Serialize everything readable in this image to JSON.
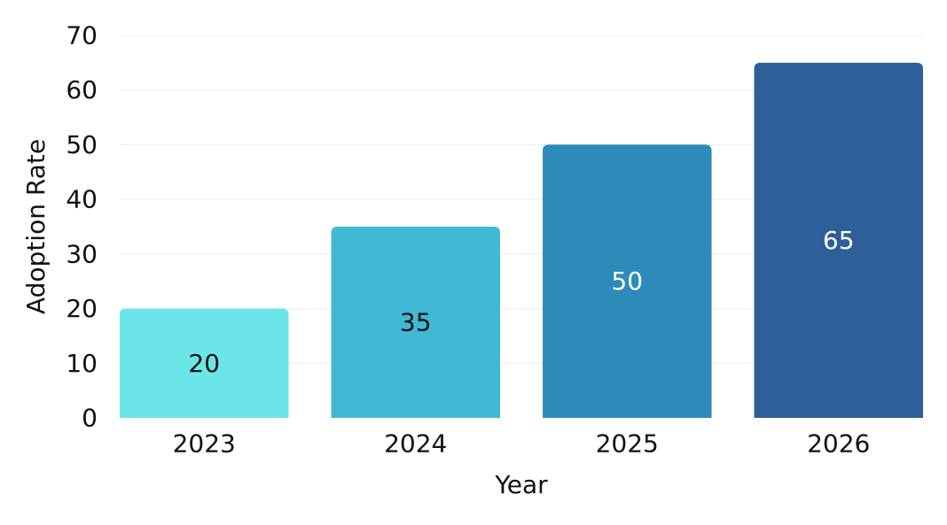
{
  "chart_data": {
    "type": "bar",
    "title": "",
    "xlabel": "Year",
    "ylabel": "Adoption Rate",
    "categories": [
      "2023",
      "2024",
      "2025",
      "2026"
    ],
    "values": [
      20,
      35,
      50,
      65
    ],
    "data_labels": [
      "20",
      "35",
      "50",
      "65"
    ],
    "ylim": [
      0,
      70
    ],
    "yticks": [
      0,
      10,
      20,
      30,
      40,
      50,
      60,
      70
    ],
    "ytick_labels": [
      "0",
      "10",
      "20",
      "30",
      "40",
      "50",
      "60",
      "70"
    ],
    "grid": true,
    "legend": "none",
    "bar_colors": [
      "#6ce5e8",
      "#41b8d5",
      "#2d8bba",
      "#2f5f98"
    ],
    "label_colors": [
      "#111111",
      "#111111",
      "#ffffff",
      "#ffffff"
    ]
  }
}
